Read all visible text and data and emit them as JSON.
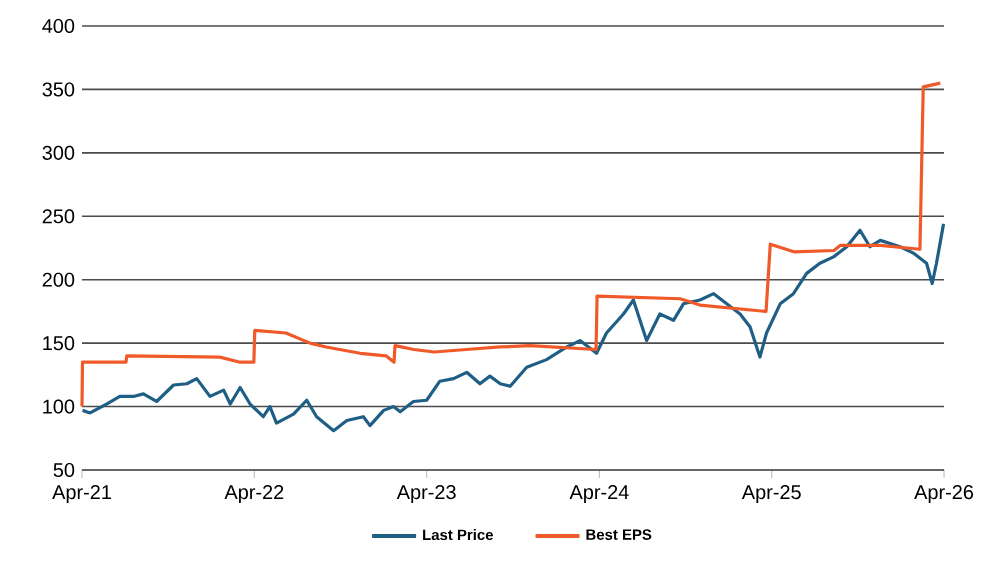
{
  "chart_data": {
    "type": "line",
    "xlim": [
      "2021-04-01",
      "2026-04-01"
    ],
    "ylim": [
      50,
      400
    ],
    "xticks": [
      {
        "value": "2021-04-01",
        "label": "Apr-21"
      },
      {
        "value": "2022-04-01",
        "label": "Apr-22"
      },
      {
        "value": "2023-04-01",
        "label": "Apr-23"
      },
      {
        "value": "2024-04-01",
        "label": "Apr-24"
      },
      {
        "value": "2025-04-01",
        "label": "Apr-25"
      },
      {
        "value": "2026-04-01",
        "label": "Apr-26"
      }
    ],
    "yticks": [
      50,
      100,
      150,
      200,
      250,
      300,
      350,
      400
    ],
    "grid": "y",
    "legend": "bottom",
    "series": [
      {
        "name": "Last Price",
        "color": "#1f5f86",
        "x": [
          "2021-04-02",
          "2021-04-18",
          "2021-05-23",
          "2021-06-20",
          "2021-07-19",
          "2021-08-09",
          "2021-09-06",
          "2021-10-12",
          "2021-11-09",
          "2021-11-30",
          "2021-12-28",
          "2022-01-26",
          "2022-02-09",
          "2022-03-02",
          "2022-03-23",
          "2022-04-20",
          "2022-05-04",
          "2022-05-18",
          "2022-06-23",
          "2022-07-21",
          "2022-08-11",
          "2022-09-16",
          "2022-10-14",
          "2022-11-18",
          "2022-12-02",
          "2022-12-31",
          "2023-01-21",
          "2023-02-04",
          "2023-03-04",
          "2023-04-01",
          "2023-04-29",
          "2023-05-28",
          "2023-06-25",
          "2023-07-23",
          "2023-08-13",
          "2023-09-04",
          "2023-09-25",
          "2023-10-30",
          "2023-12-11",
          "2024-01-23",
          "2024-02-20",
          "2024-03-26",
          "2024-04-16",
          "2024-05-22",
          "2024-06-12",
          "2024-07-10",
          "2024-08-07",
          "2024-09-05",
          "2024-09-26",
          "2024-10-31",
          "2024-11-29",
          "2024-12-27",
          "2025-01-24",
          "2025-02-14",
          "2025-03-07",
          "2025-03-21",
          "2025-04-19",
          "2025-05-17",
          "2025-06-14",
          "2025-07-12",
          "2025-08-10",
          "2025-09-07",
          "2025-10-05",
          "2025-10-26",
          "2025-11-17",
          "2025-12-29",
          "2026-01-26",
          "2026-02-23",
          "2026-03-07",
          "2026-03-16",
          "2026-03-31"
        ],
        "values": [
          97,
          95,
          102,
          108,
          108,
          110,
          104,
          117,
          118,
          122,
          108,
          113,
          102,
          115,
          102,
          92,
          100,
          87,
          94,
          105,
          92,
          81,
          89,
          92,
          85,
          97,
          100,
          96,
          104,
          105,
          120,
          122,
          127,
          118,
          124,
          118,
          116,
          131,
          137,
          147,
          152,
          142,
          158,
          173,
          184,
          152,
          173,
          168,
          181,
          184,
          189,
          181,
          173,
          163,
          139,
          158,
          181,
          189,
          205,
          213,
          218,
          226,
          239,
          226,
          231,
          226,
          221,
          213,
          197,
          213,
          244
        ]
      },
      {
        "name": "Best EPS",
        "color": "#f05a28",
        "x": [
          "2021-04-01",
          "2021-04-02",
          "2021-07-03",
          "2021-07-05",
          "2022-01-18",
          "2022-03-02",
          "2022-03-31",
          "2022-04-02",
          "2022-06-07",
          "2022-07-28",
          "2022-08-31",
          "2022-11-11",
          "2023-01-05",
          "2023-01-22",
          "2023-01-24",
          "2023-03-05",
          "2023-04-17",
          "2023-06-24",
          "2023-09-04",
          "2023-11-06",
          "2024-03-25",
          "2024-03-27",
          "2024-09-19",
          "2024-10-31",
          "2025-03-20",
          "2025-03-29",
          "2025-05-18",
          "2025-08-11",
          "2025-08-24",
          "2025-11-17",
          "2026-02-09",
          "2026-02-16",
          "2026-03-24"
        ],
        "values": [
          100,
          135,
          135,
          140,
          139,
          135,
          135,
          160,
          158,
          150,
          147,
          142,
          140,
          135,
          148,
          145,
          143,
          145,
          147,
          148,
          145,
          187,
          185,
          180,
          175,
          228,
          222,
          223,
          227,
          227,
          224,
          352,
          355
        ]
      }
    ]
  }
}
